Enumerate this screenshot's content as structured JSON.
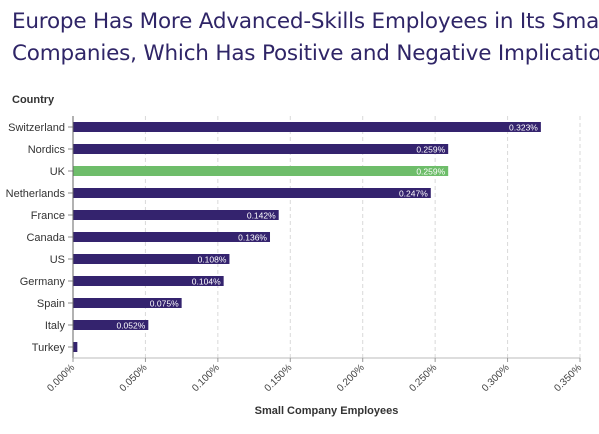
{
  "title_lines": [
    "Europe Has More Advanced-Skills Employees in Its Small",
    "Companies, Which Has Positive and Negative Implications"
  ],
  "colors": {
    "bar": "#34236e",
    "highlight": "#6ebd6a",
    "title": "#2f2567",
    "grid": "#d9d9d9",
    "text": "#333333"
  },
  "chart_data": {
    "type": "bar",
    "orientation": "horizontal",
    "title": "Europe Has More Advanced-Skills Employees in Its Small Companies, Which Has Positive and Negative Implications",
    "xlabel": "Small Company Employees",
    "ylabel": "Country",
    "categories": [
      "Switzerland",
      "Nordics",
      "UK",
      "Netherlands",
      "France",
      "Canada",
      "US",
      "Germany",
      "Spain",
      "Italy",
      "Turkey"
    ],
    "values": [
      0.323,
      0.259,
      0.259,
      0.247,
      0.142,
      0.136,
      0.108,
      0.104,
      0.075,
      0.052,
      0.003
    ],
    "data_labels": [
      "0.323%",
      "0.259%",
      "0.259%",
      "0.247%",
      "0.142%",
      "0.136%",
      "0.108%",
      "0.104%",
      "0.075%",
      "0.052%",
      ""
    ],
    "highlight_category": "UK",
    "xlim": [
      0,
      0.35
    ],
    "xticks": [
      0,
      0.05,
      0.1,
      0.15,
      0.2,
      0.25,
      0.3,
      0.35
    ],
    "xtick_labels": [
      "0.000%",
      "0.050%",
      "0.100%",
      "0.150%",
      "0.200%",
      "0.250%",
      "0.300%",
      "0.350%"
    ],
    "grid": true
  }
}
